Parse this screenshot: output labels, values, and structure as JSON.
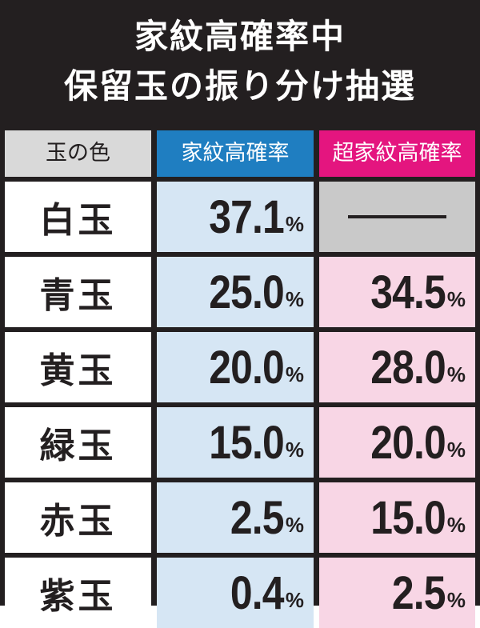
{
  "title": {
    "line1": "家紋高確率中",
    "line2": "保留玉の振り分け抽選"
  },
  "table": {
    "headers": [
      "玉の色",
      "家紋高確率",
      "超家紋高確率"
    ],
    "rows": [
      {
        "ball": "白玉",
        "kamon": "37.1",
        "super": null
      },
      {
        "ball": "青玉",
        "kamon": "25.0",
        "super": "34.5"
      },
      {
        "ball": "黄玉",
        "kamon": "20.0",
        "super": "28.0"
      },
      {
        "ball": "緑玉",
        "kamon": "15.0",
        "super": "20.0"
      },
      {
        "ball": "赤玉",
        "kamon": "2.5",
        "super": "15.0"
      },
      {
        "ball": "紫玉",
        "kamon": "0.4",
        "super": "2.5"
      }
    ],
    "percent_sign": "%",
    "na_mark": "──"
  },
  "colors": {
    "background": "#231f20",
    "header_label_bg": "#d9d9d9",
    "header_kamon_bg": "#1f7ec1",
    "header_super_bg": "#e4157f",
    "kamon_cell_bg": "#d6e6f4",
    "super_cell_bg": "#f8d6e5",
    "disabled_cell_bg": "#c9c9c9"
  }
}
